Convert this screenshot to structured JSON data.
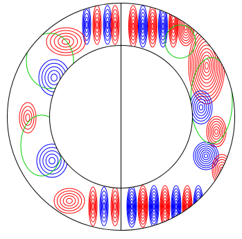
{
  "figure": {
    "kind": "annular contour plot",
    "colors": {
      "positive": "#ff0000",
      "negative": "#0000ff",
      "zero": "#00cc00",
      "outline": "#000000",
      "background": "#ffffff"
    },
    "has_text": false
  }
}
